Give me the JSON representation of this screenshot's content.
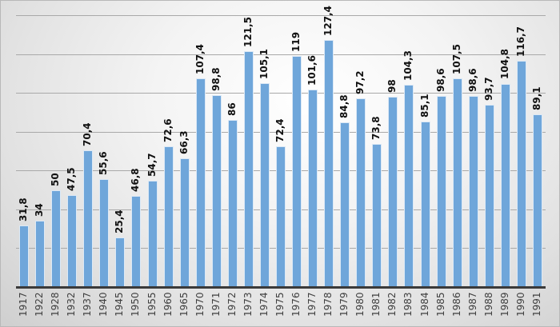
{
  "chart_data": {
    "type": "bar",
    "title": "",
    "xlabel": "",
    "ylabel": "",
    "ylim": [
      0,
      140
    ],
    "grid": true,
    "gridline_step": 20,
    "legend": "none",
    "bar_color": "#6fa6da",
    "categories": [
      "1917",
      "1922",
      "1928",
      "1932",
      "1937",
      "1940",
      "1945",
      "1950",
      "1955",
      "1960",
      "1965",
      "1970",
      "1971",
      "1972",
      "1973",
      "1974",
      "1975",
      "1976",
      "1977",
      "1978",
      "1979",
      "1980",
      "1981",
      "1982",
      "1983",
      "1984",
      "1985",
      "1986",
      "1987",
      "1988",
      "1989",
      "1990",
      "1991"
    ],
    "values": [
      31.8,
      34,
      50,
      47.5,
      70.4,
      55.6,
      25.4,
      46.8,
      54.7,
      72.6,
      66.3,
      107.4,
      98.8,
      86,
      121.5,
      105.1,
      72.4,
      119,
      101.6,
      127.4,
      84.8,
      97.2,
      73.8,
      98,
      104.3,
      85.1,
      98.6,
      107.5,
      98.6,
      93.7,
      104.8,
      116.7,
      89.1
    ],
    "value_labels": [
      "31,8",
      "34",
      "50",
      "47,5",
      "70,4",
      "55,6",
      "25,4",
      "46,8",
      "54,7",
      "72,6",
      "66,3",
      "107,4",
      "98,8",
      "86",
      "121,5",
      "105,1",
      "72,4",
      "119",
      "101,6",
      "127,4",
      "84,8",
      "97,2",
      "73,8",
      "98",
      "104,3",
      "85,1",
      "98,6",
      "107,5",
      "98,6",
      "93,7",
      "104,8",
      "116,7",
      "89,1"
    ]
  }
}
